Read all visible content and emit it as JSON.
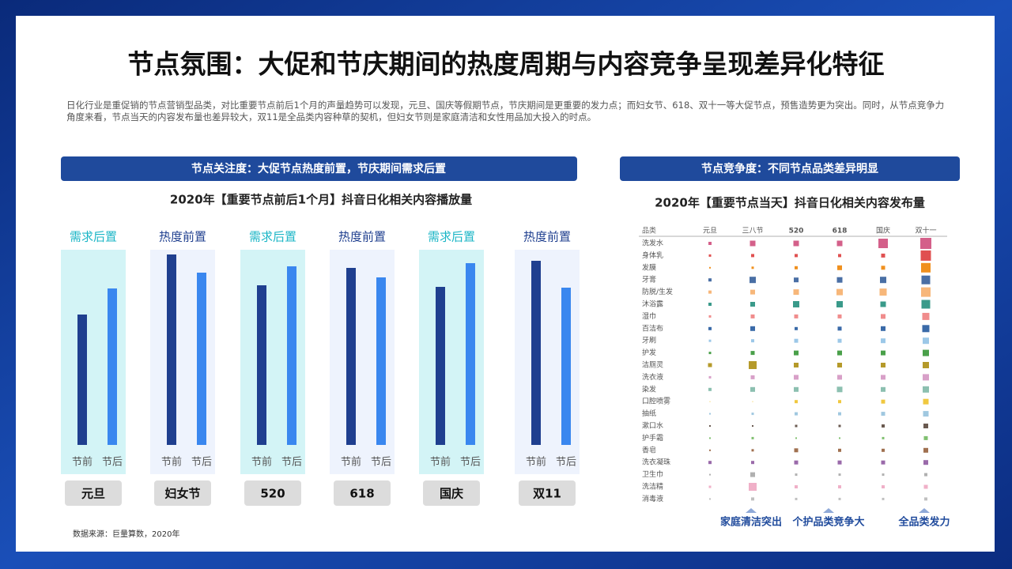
{
  "title": "节点氛围：大促和节庆期间的热度周期与内容竞争呈现差异化特征",
  "intro": "日化行业是重促销的节点营销型品类，对比重要节点前后1个月的声量趋势可以发现，元旦、国庆等假期节点，节庆期间是更重要的发力点；而妇女节、618、双十一等大促节点，预售造势更为突出。同时，从节点竞争力角度来看，节点当天的内容发布量也差异较大，双11是全品类内容种草的契机，但妇女节则是家庭清洁和女性用品加大投入的时点。",
  "left_heading": "节点关注度：大促节点热度前置，节庆期间需求后置",
  "right_heading": "节点竞争度：不同节点品类差异明显",
  "source": "数据来源：巨量算数，2020年",
  "chart_data": [
    {
      "type": "bar",
      "title": "2020年【重要节点前后1个月】抖音日化相关内容播放量",
      "categories": [
        "元旦",
        "妇女节",
        "520",
        "618",
        "国庆",
        "双11"
      ],
      "group_labels": [
        "需求后置",
        "热度前置",
        "需求后置",
        "热度前置",
        "需求后置",
        "热度前置"
      ],
      "band_colors": [
        "#d3f4f6",
        "#eef3fd",
        "#d3f4f6",
        "#eef3fd",
        "#d3f4f6",
        "#eef3fd"
      ],
      "label_colors": [
        "#1bb6c6",
        "#1f3f8f",
        "#1bb6c6",
        "#1f3f8f",
        "#1bb6c6",
        "#1f3f8f"
      ],
      "series": [
        {
          "name": "节前",
          "color": "#1f3f8f",
          "values": [
            165,
            241,
            202,
            224,
            200,
            233
          ]
        },
        {
          "name": "节后",
          "color": "#3a87ef",
          "values": [
            198,
            218,
            226,
            212,
            230,
            199
          ]
        }
      ]
    },
    {
      "type": "matrix",
      "title": "2020年【重要节点当天】抖音日化相关内容发布量",
      "row_header": "品类",
      "categories": [
        "元旦",
        "三八节",
        "520",
        "618",
        "国庆",
        "双十一"
      ],
      "series": [
        {
          "name": "洗发水",
          "color": "#d4608a",
          "values": [
            4,
            7,
            7,
            7,
            12,
            14
          ]
        },
        {
          "name": "身体乳",
          "color": "#e05050",
          "values": [
            3,
            4,
            4,
            4,
            5,
            13
          ]
        },
        {
          "name": "发膜",
          "color": "#f0901e",
          "values": [
            2,
            3,
            4,
            6,
            5,
            12
          ]
        },
        {
          "name": "牙膏",
          "color": "#4a6fa5",
          "values": [
            4,
            8,
            6,
            7,
            8,
            11
          ]
        },
        {
          "name": "防脱/生发",
          "color": "#f7b77a",
          "values": [
            4,
            6,
            7,
            8,
            9,
            12
          ]
        },
        {
          "name": "沐浴露",
          "color": "#3a9a8a",
          "values": [
            4,
            6,
            8,
            8,
            7,
            11
          ]
        },
        {
          "name": "湿巾",
          "color": "#f08c8c",
          "values": [
            3,
            5,
            5,
            5,
            6,
            9
          ]
        },
        {
          "name": "百洁布",
          "color": "#3a6aa8",
          "values": [
            4,
            6,
            4,
            5,
            6,
            9
          ]
        },
        {
          "name": "牙刷",
          "color": "#9cc8e8",
          "values": [
            3,
            4,
            5,
            5,
            6,
            8
          ]
        },
        {
          "name": "护发",
          "color": "#4aa04a",
          "values": [
            3,
            5,
            6,
            6,
            6,
            8
          ]
        },
        {
          "name": "洁厕灵",
          "color": "#b59a2a",
          "values": [
            5,
            10,
            6,
            6,
            6,
            8
          ]
        },
        {
          "name": "洗衣液",
          "color": "#d8a0c8",
          "values": [
            3,
            5,
            6,
            6,
            6,
            8
          ]
        },
        {
          "name": "染发",
          "color": "#8cc0b0",
          "values": [
            4,
            6,
            6,
            7,
            6,
            8
          ]
        },
        {
          "name": "口腔喷雾",
          "color": "#f0c840",
          "values": [
            1,
            1,
            4,
            4,
            5,
            7
          ]
        },
        {
          "name": "抽纸",
          "color": "#a0c8e0",
          "values": [
            2,
            3,
            4,
            4,
            5,
            7
          ]
        },
        {
          "name": "漱口水",
          "color": "#6a5a50",
          "values": [
            2,
            2,
            3,
            3,
            4,
            6
          ]
        },
        {
          "name": "护手霜",
          "color": "#80c070",
          "values": [
            2,
            3,
            2,
            2,
            3,
            5
          ]
        },
        {
          "name": "香皂",
          "color": "#a07050",
          "values": [
            2,
            3,
            5,
            4,
            4,
            6
          ]
        },
        {
          "name": "洗衣凝珠",
          "color": "#9a6aaa",
          "values": [
            4,
            4,
            5,
            5,
            5,
            6
          ]
        },
        {
          "name": "卫生巾",
          "color": "#b0b0b0",
          "values": [
            2,
            6,
            3,
            3,
            3,
            4
          ]
        },
        {
          "name": "洗洁精",
          "color": "#f0b0c8",
          "values": [
            3,
            10,
            4,
            4,
            4,
            5
          ]
        },
        {
          "name": "消毒液",
          "color": "#c0c0c0",
          "values": [
            2,
            4,
            3,
            3,
            3,
            4
          ]
        }
      ],
      "annotations": [
        "家庭清洁突出",
        "个护品类竞争大",
        "全品类发力"
      ]
    }
  ]
}
